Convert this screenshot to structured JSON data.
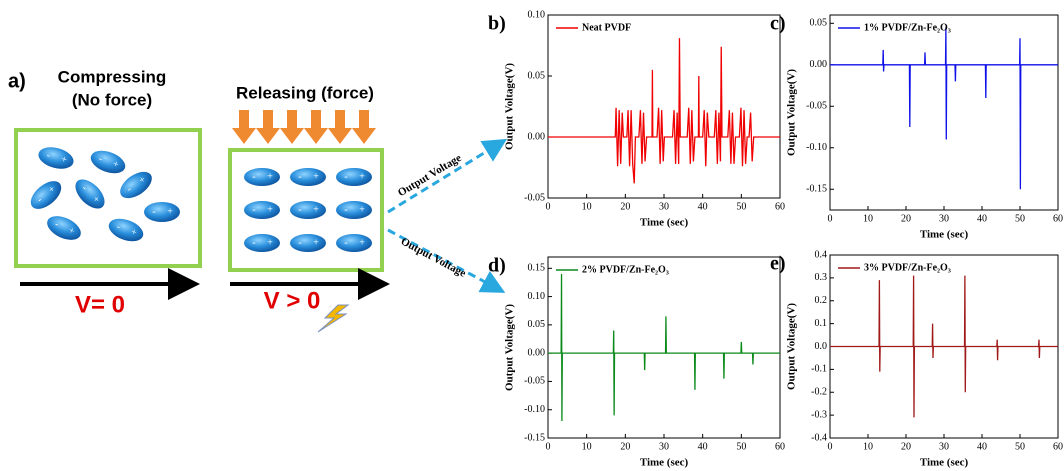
{
  "diagram": {
    "panel_label": "a)",
    "left_title": "Compressing",
    "left_subtitle": "(No force)",
    "right_title": "Releasing (force)",
    "left_voltage": "V= 0",
    "right_voltage": "V > 0",
    "arrow_label_top": "Output Voltage",
    "arrow_label_bottom": "Output Voltage",
    "signs": [
      "-",
      "+"
    ]
  },
  "chart_data": [
    {
      "type": "line",
      "label": "b)",
      "xlabel": "Time (sec)",
      "ylabel": "Output Voltage(V)",
      "xlim": [
        0,
        60
      ],
      "xticks": [
        0,
        10,
        20,
        30,
        40,
        50,
        60
      ],
      "ylim": [
        -0.05,
        0.1
      ],
      "yticks": [
        -0.05,
        {
          "value": 0,
          "label": "0.00"
        },
        0.05,
        {
          "value": 0.1,
          "label": "0.10"
        }
      ],
      "x": [
        0,
        17.4,
        17.6,
        18,
        18.4,
        18.8,
        19.2,
        19.5,
        20.4,
        20.7,
        21.1,
        21.5,
        21.9,
        22.3,
        22.6,
        23.5,
        23.9,
        24.3,
        24.7,
        25.1,
        25.5,
        26.9,
        27,
        27.1,
        28.2,
        28.6,
        29,
        29.4,
        29.8,
        30.1,
        32.2,
        32.6,
        33,
        33.4,
        33.8,
        34,
        34.2,
        36,
        36.4,
        36.8,
        37.2,
        37.6,
        38,
        38.9,
        39,
        39.1,
        40,
        40.4,
        40.8,
        41.2,
        41.6,
        43,
        43.4,
        43.8,
        44.2,
        44.6,
        44.8,
        45,
        46.5,
        46.9,
        47.3,
        47.7,
        48.1,
        48.5,
        49.5,
        49.9,
        50.3,
        50.7,
        51.1,
        51.5,
        52,
        52.4,
        52.8,
        53.2,
        60
      ],
      "series": [
        {
          "name": "Neat PVDF",
          "color": "#f00000",
          "values": [
            0,
            0,
            0.024,
            -0.024,
            0.022,
            -0.022,
            0.02,
            0,
            0,
            0.022,
            -0.024,
            0.022,
            -0.022,
            -0.038,
            0,
            0,
            0.022,
            -0.022,
            0.02,
            -0.02,
            0,
            0,
            0.055,
            0,
            0,
            0.024,
            -0.022,
            0.022,
            -0.02,
            0,
            0,
            0.022,
            -0.022,
            0.02,
            -0.022,
            0.081,
            0,
            0,
            0.024,
            -0.022,
            0.022,
            -0.02,
            0,
            0,
            0.05,
            0,
            0,
            0.022,
            -0.024,
            0.02,
            0,
            0,
            0.022,
            -0.022,
            0.02,
            -0.02,
            0.074,
            0,
            0,
            0.022,
            -0.022,
            0.02,
            -0.022,
            0,
            0,
            0.024,
            -0.024,
            0.022,
            -0.022,
            0,
            0,
            0.02,
            -0.02,
            0,
            0
          ]
        }
      ]
    },
    {
      "type": "line",
      "label": "c)",
      "xlabel": "Time (sec)",
      "ylabel": "Output Voltage(V)",
      "xlim": [
        0,
        60
      ],
      "xticks": [
        0,
        10,
        20,
        30,
        40,
        50,
        60
      ],
      "ylim": [
        -0.175,
        0.06
      ],
      "yticks": [
        -0.15,
        {
          "value": -0.1,
          "label": "-0.10"
        },
        -0.05,
        {
          "value": 0,
          "label": "0.00"
        },
        0.05
      ],
      "x": [
        0,
        13.9,
        14,
        14.1,
        14.2,
        20.9,
        21,
        21.1,
        24.9,
        25,
        25.1,
        30.4,
        30.5,
        30.6,
        30.7,
        32.9,
        33,
        33.1,
        40.9,
        41,
        41.1,
        49.9,
        50,
        50.1,
        50.2,
        60
      ],
      "series": [
        {
          "name": "1% PVDF/Zn-Fe₂O₃",
          "color": "#1010e8",
          "values": [
            0,
            0,
            0.018,
            -0.008,
            0,
            0,
            -0.075,
            0,
            0,
            0.015,
            0,
            0,
            0.045,
            -0.09,
            0,
            0,
            -0.02,
            0,
            0,
            -0.04,
            0,
            0,
            0.032,
            -0.15,
            0,
            0
          ]
        }
      ]
    },
    {
      "type": "line",
      "label": "d)",
      "xlabel": "Time (sec)",
      "ylabel": "Output Voltage(V)",
      "xlim": [
        0,
        60
      ],
      "xticks": [
        0,
        10,
        20,
        30,
        40,
        50,
        60
      ],
      "ylim": [
        -0.15,
        0.17
      ],
      "yticks": [
        -0.15,
        {
          "value": -0.1,
          "label": "-0.10"
        },
        -0.05,
        {
          "value": 0,
          "label": "0.00"
        },
        0.05,
        {
          "value": 0.1,
          "label": "0.10"
        },
        0.15
      ],
      "x": [
        0,
        3.4,
        3.5,
        3.6,
        3.7,
        16.9,
        17,
        17.1,
        17.2,
        24.9,
        25,
        25.1,
        30.4,
        30.5,
        30.6,
        37.9,
        38,
        38.1,
        45.4,
        45.5,
        45.6,
        49.9,
        50,
        50.1,
        52.9,
        53,
        53.1,
        60
      ],
      "series": [
        {
          "name": "2% PVDF/Zn-Fe₂O₃",
          "color": "#0a8a1a",
          "values": [
            0,
            0,
            0.14,
            -0.12,
            0,
            0,
            0.04,
            -0.11,
            0,
            0,
            -0.03,
            0,
            0,
            0.065,
            0,
            0,
            -0.065,
            0,
            0,
            -0.045,
            0,
            0,
            0.02,
            0,
            0,
            -0.02,
            0,
            0
          ]
        }
      ]
    },
    {
      "type": "line",
      "label": "e)",
      "xlabel": "Time (sec)",
      "ylabel": "Output Voltage(V)",
      "xlim": [
        0,
        60
      ],
      "xticks": [
        0,
        10,
        20,
        30,
        40,
        50,
        60
      ],
      "ylim": [
        -0.4,
        0.4
      ],
      "yticks": [
        -0.4,
        -0.3,
        -0.2,
        -0.1,
        {
          "value": 0,
          "label": "0.0"
        },
        0.1,
        0.2,
        0.3,
        0.4
      ],
      "x": [
        0,
        12.9,
        13,
        13.1,
        13.2,
        21.9,
        22,
        22.1,
        22.2,
        26.9,
        27,
        27.1,
        27.2,
        35.4,
        35.5,
        35.6,
        35.7,
        43.9,
        44,
        44.1,
        44.2,
        54.9,
        55,
        55.1,
        55.2,
        60
      ],
      "series": [
        {
          "name": "3% PVDF/Zn-Fe₂O₃",
          "color": "#a01818",
          "values": [
            0,
            0,
            0.29,
            -0.11,
            0,
            0,
            0.31,
            -0.31,
            0,
            0,
            0.1,
            -0.05,
            0,
            0,
            0.31,
            -0.2,
            0,
            0,
            0.03,
            -0.06,
            0,
            0,
            0.03,
            -0.05,
            0,
            0
          ]
        }
      ]
    }
  ]
}
